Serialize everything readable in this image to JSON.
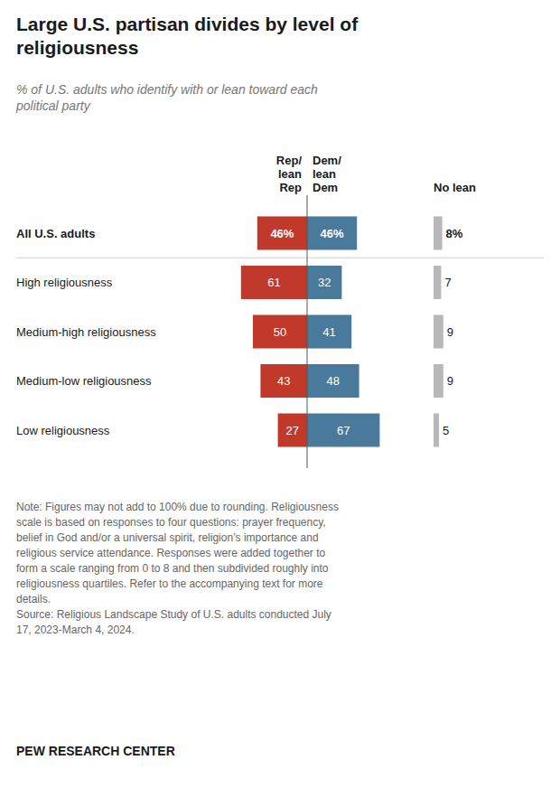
{
  "chart_data": {
    "type": "bar",
    "orientation": "horizontal",
    "title": "Large U.S. partisan divides by level of\nreligiousness",
    "subtitle": "% of U.S. adults who identify with or lean toward each\npolitical party",
    "categories": [
      "All U.S. adults",
      "High religiousness",
      "Medium-high religiousness",
      "Medium-low religiousness",
      "Low religiousness"
    ],
    "series": [
      {
        "name": "Rep/\nlean\nRep",
        "color": "#c0392b",
        "values": [
          46,
          61,
          50,
          43,
          27
        ],
        "value_labels": [
          "46%",
          "61",
          "50",
          "43",
          "27"
        ]
      },
      {
        "name": "Dem/\nlean\nDem",
        "color": "#4a7a9b",
        "values": [
          46,
          32,
          41,
          48,
          67
        ],
        "value_labels": [
          "46%",
          "32",
          "41",
          "48",
          "67"
        ]
      },
      {
        "name": "No lean",
        "color": "#b8b8b8",
        "values": [
          8,
          7,
          9,
          9,
          5
        ],
        "value_labels": [
          "8%",
          "7",
          "9",
          "9",
          "5"
        ]
      }
    ],
    "xlim": [
      0,
      100
    ],
    "data_labels": true,
    "tick_labels": false,
    "grid": false,
    "note": "Note: Figures may not add to 100% due to rounding. Religiousness\nscale is based on responses to four questions: prayer frequency,\nbelief in God and/or a universal spirit, religion’s importance and\nreligious service attendance. Responses were added together to\nform a scale ranging from 0 to 8 and then subdivided roughly into\nreligiousness quartiles. Refer to the accompanying text for more\ndetails.\nSource: Religious Landscape Study of U.S. adults conducted July\n17, 2023-March 4, 2024.",
    "footer": "PEW RESEARCH CENTER"
  }
}
